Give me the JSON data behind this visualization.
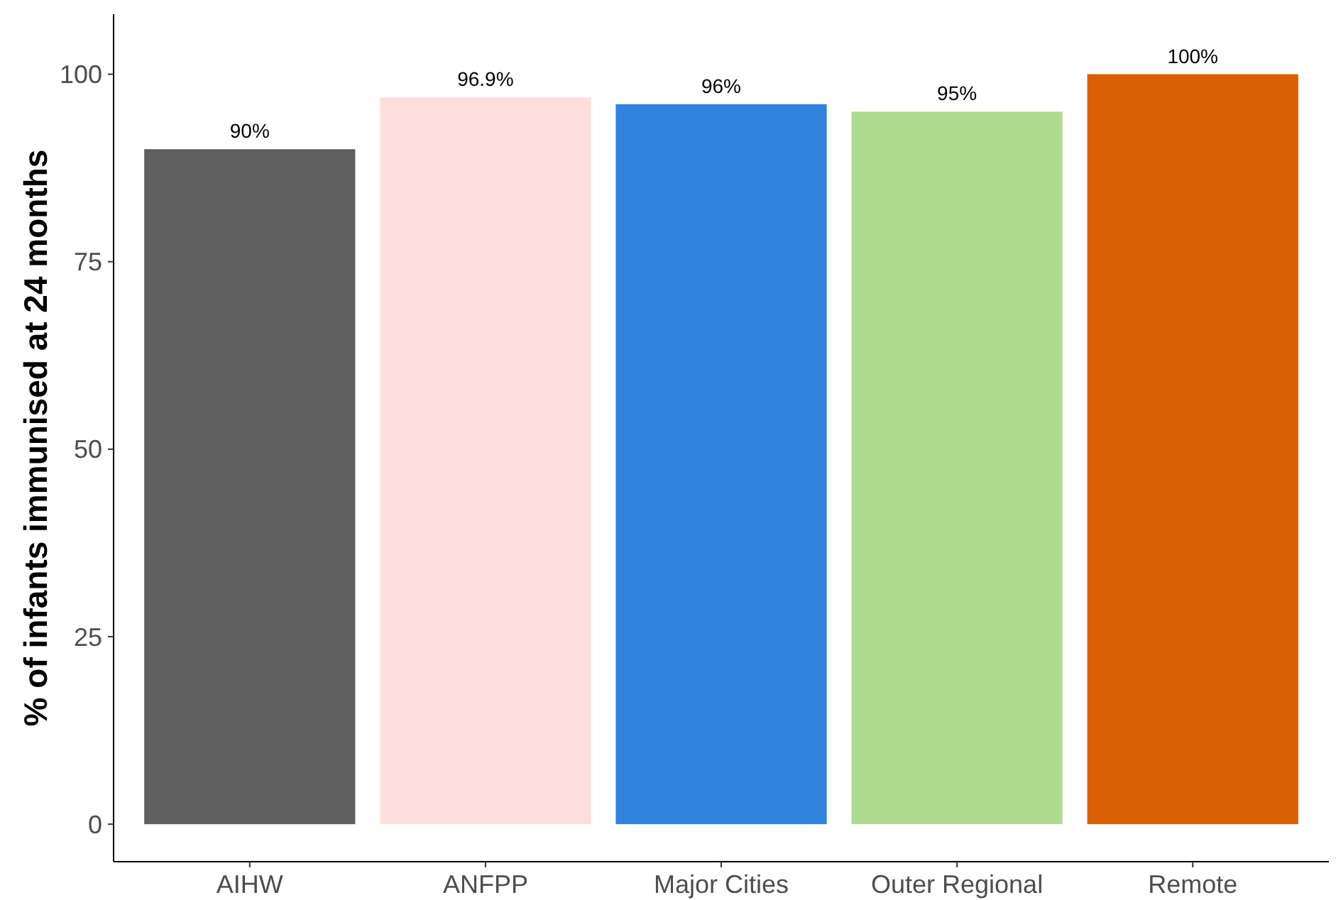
{
  "chart_data": {
    "type": "bar",
    "ylabel": "% of infants immunised at 24 months",
    "categories": [
      "AIHW",
      "ANFPP",
      "Major Cities",
      "Outer Regional",
      "Remote"
    ],
    "values": [
      90,
      96.9,
      96,
      95,
      100
    ],
    "value_labels": [
      "90%",
      "96.9%",
      "96%",
      "95%",
      "100%"
    ],
    "colors": [
      "#5f5f5f",
      "#fcdedc",
      "#3182dd",
      "#addc8f",
      "#d95f02"
    ],
    "ylim": [
      -5,
      108
    ],
    "yticks": [
      0,
      25,
      50,
      75,
      100
    ]
  }
}
